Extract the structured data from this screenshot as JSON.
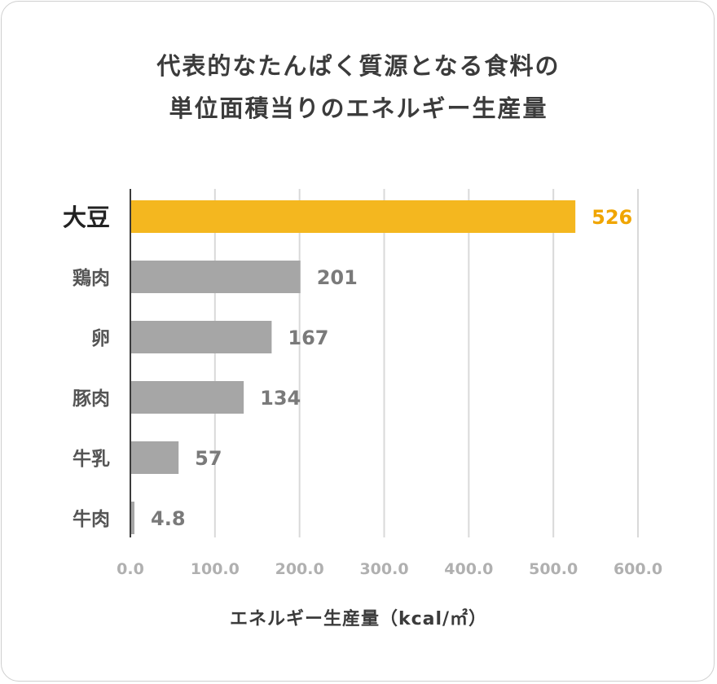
{
  "chart_data": {
    "type": "bar",
    "orientation": "horizontal",
    "title_lines": [
      "代表的なたんぱく質源となる食料の",
      "単位面積当りのエネルギー生産量"
    ],
    "xlabel": "エネルギー生産量（kcal/㎡）",
    "ylabel": "",
    "categories": [
      "大豆",
      "鶏肉",
      "卵",
      "豚肉",
      "牛乳",
      "牛肉"
    ],
    "values": [
      526,
      201,
      167,
      134,
      57,
      4.8
    ],
    "value_labels": [
      "526",
      "201",
      "167",
      "134",
      "57",
      "4.8"
    ],
    "highlight_index": 0,
    "xlim": [
      0,
      600
    ],
    "xticks": [
      0,
      100,
      200,
      300,
      400,
      500,
      600
    ],
    "xtick_labels": [
      "0.0",
      "100.0",
      "200.0",
      "300.0",
      "400.0",
      "500.0",
      "600.0"
    ],
    "grid": true,
    "colors": {
      "highlight_bar": "#f4b71f",
      "highlight_label": "#f0a500",
      "bar": "#a6a6a6",
      "bar_label": "#7a7a7a",
      "highlight_category": "#222222",
      "category": "#555555",
      "grid": "#d9d9d9",
      "axis": "#3b3b3b",
      "tick": "#b0b0b0"
    }
  }
}
